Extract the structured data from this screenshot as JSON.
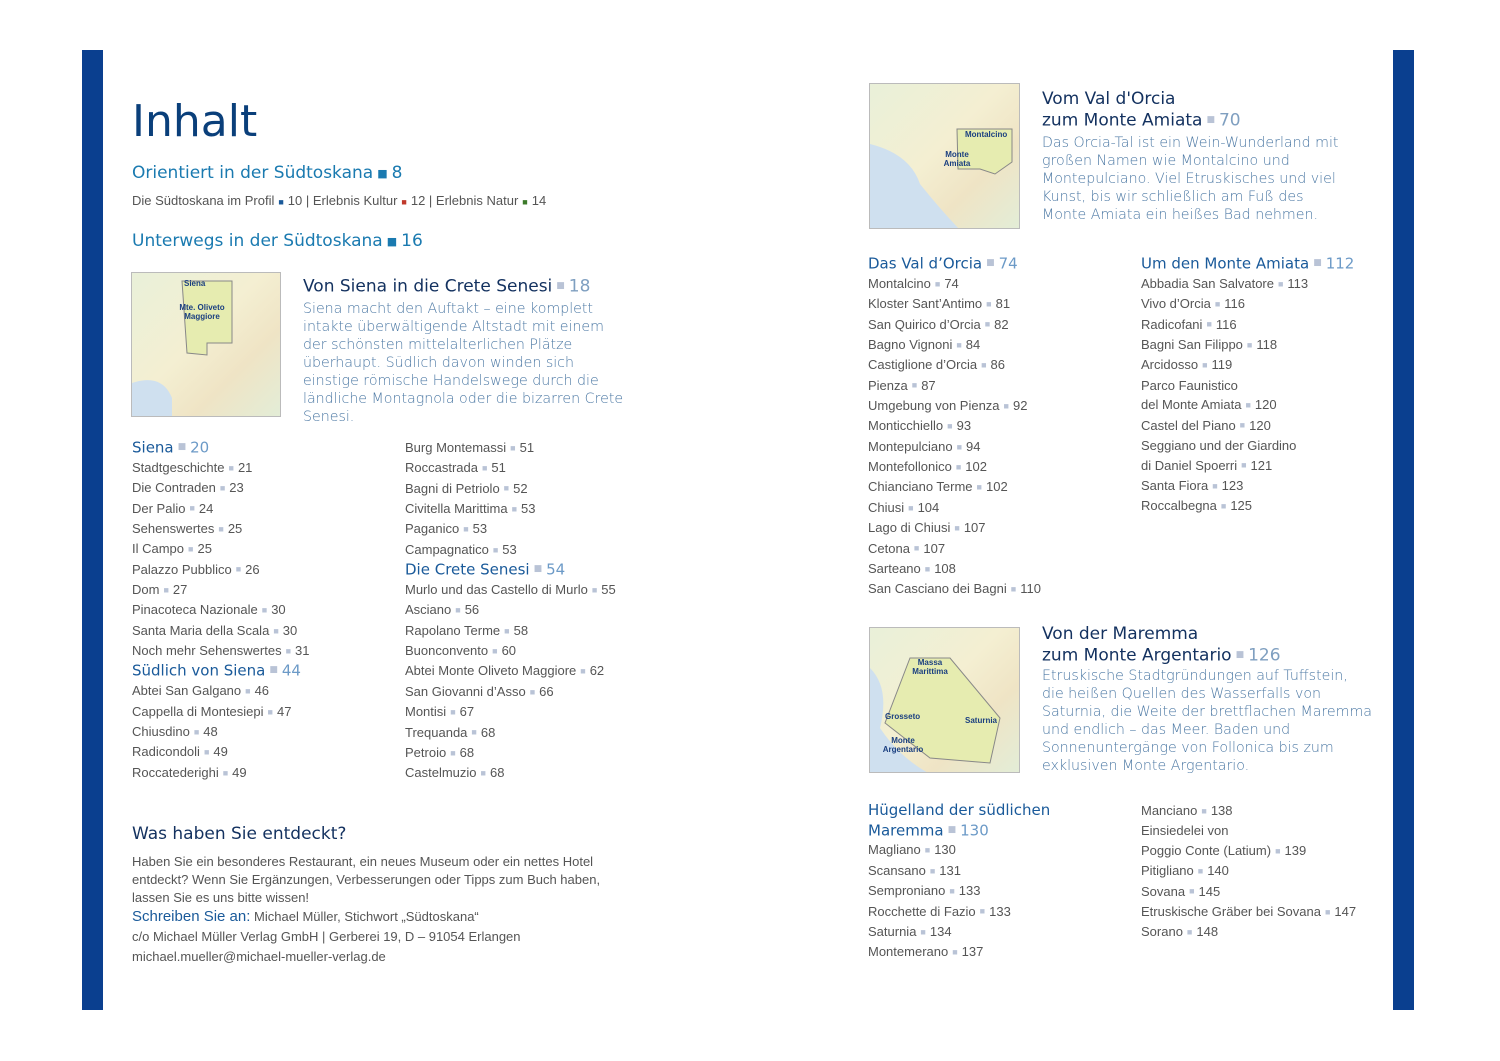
{
  "title": "Inhalt",
  "orient": {
    "label": "Orientiert in der Südtoskana",
    "page": "8",
    "sub": [
      {
        "label": "Die Südtoskana im Profil",
        "page": "10",
        "color": "#1a5a9a"
      },
      {
        "label": "Erlebnis Kultur",
        "page": "12",
        "color": "#c0392b"
      },
      {
        "label": "Erlebnis Natur",
        "page": "14",
        "color": "#3c7a2a"
      }
    ]
  },
  "unterwegs": {
    "label": "Unterwegs in der Südtoskana",
    "page": "16"
  },
  "chapters": [
    {
      "title": "Von Siena in die Crete Senesi",
      "page": "18",
      "desc": "Siena macht den Auftakt – eine komplett intakte überwältigende Altstadt mit einem der schönsten mittelalterlichen Plätze überhaupt. Südlich davon winden sich einstige römische Handelswege durch die ländliche Montagnola oder die bizarren Crete Senesi.",
      "map_labels": [
        "Siena",
        "Mte. Oliveto Maggiore"
      ]
    },
    {
      "title1": "Vom Val d'Orcia",
      "title2": "zum Monte Amiata",
      "page": "70",
      "desc": "Das Orcia-Tal ist ein Wein-Wunderland mit großen Namen wie Montalcino und Montepulciano. Viel Etruskisches und viel Kunst, bis wir schließlich am Fuß des Monte Amiata ein heißes Bad nehmen.",
      "map_labels": [
        "Montalcino",
        "Monte Amiata"
      ]
    },
    {
      "title1": "Von der Maremma",
      "title2": "zum Monte Argentario",
      "page": "126",
      "desc": "Etruskische Stadtgründungen auf Tuffstein, die heißen Quellen des Wasserfalls von Saturnia, die Weite der brettflachen Maremma und endlich – das Meer. Baden und Sonnenuntergänge von Follonica bis zum exklusiven Monte Argentario.",
      "map_labels": [
        "Massa Marittima",
        "Grosseto",
        "Saturnia",
        "Monte Argentario"
      ]
    }
  ],
  "lists": {
    "l1": [
      {
        "h": 1,
        "t": "Siena",
        "p": "20"
      },
      {
        "t": "Stadtgeschichte",
        "p": "21"
      },
      {
        "t": "Die Contraden",
        "p": "23"
      },
      {
        "t": "Der Palio",
        "p": "24"
      },
      {
        "t": "Sehenswertes",
        "p": "25"
      },
      {
        "t": "Il Campo",
        "p": "25"
      },
      {
        "t": "Palazzo Pubblico",
        "p": "26"
      },
      {
        "t": "Dom",
        "p": "27"
      },
      {
        "t": "Pinacoteca Nazionale",
        "p": "30"
      },
      {
        "t": "Santa Maria della Scala",
        "p": "30"
      },
      {
        "t": "Noch mehr Sehenswertes",
        "p": "31"
      },
      {
        "h": 1,
        "t": "Südlich von Siena",
        "p": "44"
      },
      {
        "t": "Abtei San Galgano",
        "p": "46"
      },
      {
        "t": "Cappella di Montesiepi",
        "p": "47"
      },
      {
        "t": "Chiusdino",
        "p": "48"
      },
      {
        "t": "Radicondoli",
        "p": "49"
      },
      {
        "t": "Roccatederighi",
        "p": "49"
      }
    ],
    "l2": [
      {
        "t": "Burg Montemassi",
        "p": "51"
      },
      {
        "t": "Roccastrada",
        "p": "51"
      },
      {
        "t": "Bagni di Petriolo",
        "p": "52"
      },
      {
        "t": "Civitella Marittima",
        "p": "53"
      },
      {
        "t": "Paganico",
        "p": "53"
      },
      {
        "t": "Campagnatico",
        "p": "53"
      },
      {
        "h": 1,
        "t": "Die Crete Senesi",
        "p": "54"
      },
      {
        "t": "Murlo und das Castello di Murlo",
        "p": "55"
      },
      {
        "t": "Asciano",
        "p": "56"
      },
      {
        "t": "Rapolano Terme",
        "p": "58"
      },
      {
        "t": "Buonconvento",
        "p": "60"
      },
      {
        "t": "Abtei Monte Oliveto Maggiore",
        "p": "62"
      },
      {
        "t": "San Giovanni d’Asso",
        "p": "66"
      },
      {
        "t": "Montisi",
        "p": "67"
      },
      {
        "t": "Trequanda",
        "p": "68"
      },
      {
        "t": "Petroio",
        "p": "68"
      },
      {
        "t": "Castelmuzio",
        "p": "68"
      }
    ],
    "r1": [
      {
        "h": 1,
        "t": "Das Val d’Orcia",
        "p": "74"
      },
      {
        "t": "Montalcino",
        "p": "74"
      },
      {
        "t": "Kloster Sant’Antimo",
        "p": "81"
      },
      {
        "t": "San Quirico d’Orcia",
        "p": "82"
      },
      {
        "t": "Bagno Vignoni",
        "p": "84"
      },
      {
        "t": "Castiglione d’Orcia",
        "p": "86"
      },
      {
        "t": "Pienza",
        "p": "87"
      },
      {
        "t": "Umgebung von Pienza",
        "p": "92"
      },
      {
        "t": "Monticchiello",
        "p": "93"
      },
      {
        "t": "Montepulciano",
        "p": "94"
      },
      {
        "t": "Montefollonico",
        "p": "102"
      },
      {
        "t": "Chianciano Terme",
        "p": "102"
      },
      {
        "t": "Chiusi",
        "p": "104"
      },
      {
        "t": "Lago di Chiusi",
        "p": "107"
      },
      {
        "t": "Cetona",
        "p": "107"
      },
      {
        "t": "Sarteano",
        "p": "108"
      },
      {
        "t": "San Casciano dei Bagni",
        "p": "110"
      }
    ],
    "r2": [
      {
        "h": 1,
        "t": "Um den Monte Amiata",
        "p": "112"
      },
      {
        "t": "Abbadia San Salvatore",
        "p": "113"
      },
      {
        "t": "Vivo d’Orcia",
        "p": "116"
      },
      {
        "t": "Radicofani",
        "p": "116"
      },
      {
        "t": "Bagni San Filippo",
        "p": "118"
      },
      {
        "t": "Arcidosso",
        "p": "119"
      },
      {
        "t": "Parco Faunistico",
        "p": ""
      },
      {
        "t": "del Monte Amiata",
        "p": "120"
      },
      {
        "t": "Castel del Piano",
        "p": "120"
      },
      {
        "t": "Seggiano und der Giardino",
        "p": ""
      },
      {
        "t": "di Daniel Spoerri",
        "p": "121"
      },
      {
        "t": "Santa Fiora",
        "p": "123"
      },
      {
        "t": "Roccalbegna",
        "p": "125"
      }
    ],
    "r3": [
      {
        "h": 1,
        "t": "Hügelland der südlichen",
        "p": ""
      },
      {
        "h": 1,
        "t": "Maremma",
        "p": "130"
      },
      {
        "t": "Magliano",
        "p": "130"
      },
      {
        "t": "Scansano",
        "p": "131"
      },
      {
        "t": "Semproniano",
        "p": "133"
      },
      {
        "t": "Rocchette di Fazio",
        "p": "133"
      },
      {
        "t": "Saturnia",
        "p": "134"
      },
      {
        "t": "Montemerano",
        "p": "137"
      }
    ],
    "r4": [
      {
        "t": "Manciano",
        "p": "138"
      },
      {
        "t": "Einsiedelei von",
        "p": ""
      },
      {
        "t": "Poggio Conte (Latium)",
        "p": "139"
      },
      {
        "t": "Pitigliano",
        "p": "140"
      },
      {
        "t": "Sovana",
        "p": "145"
      },
      {
        "t": "Etruskische Gräber bei Sovana",
        "p": "147"
      },
      {
        "t": "Sorano",
        "p": "148"
      }
    ]
  },
  "feedback": {
    "heading": "Was haben Sie entdeckt?",
    "body": "Haben Sie ein besonderes Restaurant, ein neues Museum oder ein nettes Hotel entdeckt? Wenn Sie Ergänzungen, Verbesserungen oder Tipps zum Buch haben, lassen Sie es uns bitte wissen!",
    "write_label": "Schreiben Sie an:",
    "address1": "Michael Müller, Stichwort „Südtoskana“",
    "address2": "c/o Michael Müller Verlag GmbH | Gerberei 19, D – 91054 Erlangen",
    "email": "michael.mueller@michael-mueller-verlag.de"
  },
  "colors": {
    "bar": "#0a3f8f",
    "section": "#1a7ab0",
    "chapter": "#13315f"
  }
}
